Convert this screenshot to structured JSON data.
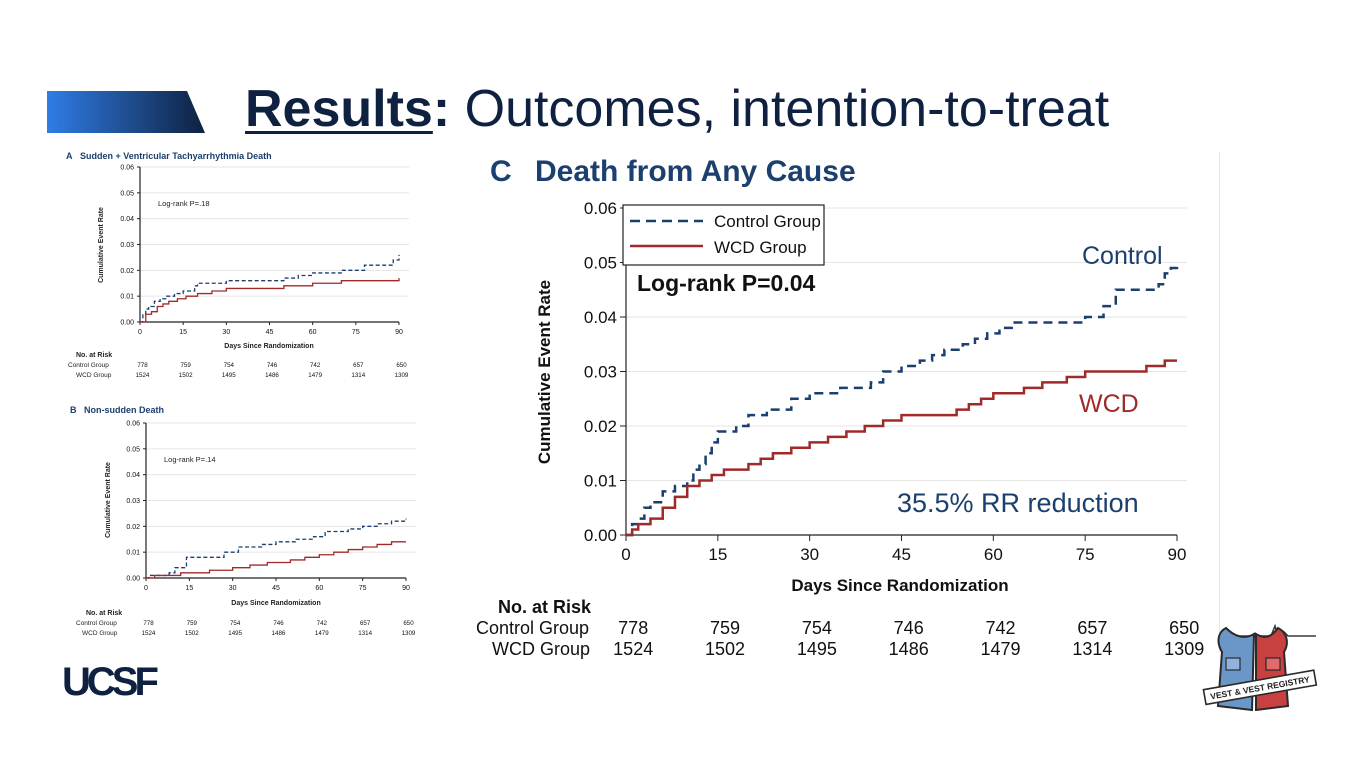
{
  "slide": {
    "title_bold": "Results",
    "title_colon": ":",
    "title_rest": " Outcomes, intention-to-treat"
  },
  "colors": {
    "navy": "#0f2140",
    "control": "#1b3f6e",
    "wcd": "#a02a2a",
    "banner_light": "#2f7de6",
    "banner_dark": "#0f2140"
  },
  "chart_data": [
    {
      "id": "A",
      "type": "line",
      "panel_label": "A",
      "title": "Sudden + Ventricular Tachyarrhythmia Death",
      "xlabel": "Days Since Randomization",
      "ylabel": "Cumulative Event Rate",
      "xlim": [
        0,
        90
      ],
      "ylim": [
        0,
        0.06
      ],
      "xticks": [
        "0",
        "15",
        "30",
        "45",
        "60",
        "75",
        "90"
      ],
      "yticks": [
        "0.00",
        "0.01",
        "0.02",
        "0.03",
        "0.04",
        "0.05",
        "0.06"
      ],
      "annotation": "Log-rank P=.18",
      "grid": true,
      "series": [
        {
          "name": "Control Group",
          "style": "dashed",
          "color": "#1b3f6e",
          "x": [
            0,
            1,
            2,
            3,
            5,
            7,
            9,
            12,
            15,
            19,
            20,
            25,
            30,
            40,
            50,
            55,
            60,
            70,
            78,
            88,
            90
          ],
          "y": [
            0,
            0.003,
            0.005,
            0.006,
            0.008,
            0.009,
            0.01,
            0.011,
            0.012,
            0.014,
            0.015,
            0.015,
            0.016,
            0.016,
            0.017,
            0.018,
            0.019,
            0.02,
            0.022,
            0.024,
            0.026
          ]
        },
        {
          "name": "WCD Group",
          "style": "solid",
          "color": "#a02a2a",
          "x": [
            0,
            2,
            4,
            6,
            8,
            10,
            13,
            16,
            20,
            25,
            30,
            40,
            50,
            60,
            70,
            80,
            90
          ],
          "y": [
            0,
            0.003,
            0.004,
            0.006,
            0.007,
            0.008,
            0.009,
            0.01,
            0.011,
            0.012,
            0.013,
            0.013,
            0.014,
            0.015,
            0.016,
            0.016,
            0.017
          ]
        }
      ],
      "risk_table": {
        "header": "No. at Risk",
        "rows": [
          {
            "label": "Control Group",
            "values": [
              "778",
              "759",
              "754",
              "746",
              "742",
              "657",
              "650"
            ]
          },
          {
            "label": "WCD Group",
            "values": [
              "1524",
              "1502",
              "1495",
              "1486",
              "1479",
              "1314",
              "1309"
            ]
          }
        ]
      }
    },
    {
      "id": "B",
      "type": "line",
      "panel_label": "B",
      "title": "Non-sudden Death",
      "xlabel": "Days Since Randomization",
      "ylabel": "Cumulative Event Rate",
      "xlim": [
        0,
        90
      ],
      "ylim": [
        0,
        0.06
      ],
      "xticks": [
        "0",
        "15",
        "30",
        "45",
        "60",
        "75",
        "90"
      ],
      "yticks": [
        "0.00",
        "0.01",
        "0.02",
        "0.03",
        "0.04",
        "0.05",
        "0.06"
      ],
      "annotation": "Log-rank P=.14",
      "grid": true,
      "series": [
        {
          "name": "Control Group",
          "style": "dashed",
          "color": "#1b3f6e",
          "x": [
            0,
            1,
            8,
            10,
            14,
            27,
            32,
            40,
            45,
            52,
            58,
            62,
            70,
            75,
            80,
            85,
            90
          ],
          "y": [
            0,
            0.001,
            0.002,
            0.004,
            0.008,
            0.01,
            0.012,
            0.013,
            0.014,
            0.015,
            0.016,
            0.018,
            0.019,
            0.02,
            0.021,
            0.022,
            0.023
          ]
        },
        {
          "name": "WCD Group",
          "style": "solid",
          "color": "#a02a2a",
          "x": [
            0,
            3,
            12,
            22,
            30,
            36,
            42,
            50,
            55,
            60,
            65,
            70,
            75,
            80,
            85,
            90
          ],
          "y": [
            0,
            0.001,
            0.002,
            0.003,
            0.004,
            0.005,
            0.006,
            0.007,
            0.008,
            0.009,
            0.01,
            0.011,
            0.012,
            0.013,
            0.014,
            0.014
          ]
        }
      ],
      "risk_table": {
        "header": "No. at Risk",
        "rows": [
          {
            "label": "Control Group",
            "values": [
              "778",
              "759",
              "754",
              "746",
              "742",
              "657",
              "650"
            ]
          },
          {
            "label": "WCD Group",
            "values": [
              "1524",
              "1502",
              "1495",
              "1486",
              "1479",
              "1314",
              "1309"
            ]
          }
        ]
      }
    },
    {
      "id": "C",
      "type": "line",
      "panel_label": "C",
      "title": "Death from Any Cause",
      "xlabel": "Days Since Randomization",
      "ylabel": "Cumulative Event Rate",
      "xlim": [
        0,
        90
      ],
      "ylim": [
        0,
        0.06
      ],
      "xticks": [
        "0",
        "15",
        "30",
        "45",
        "60",
        "75",
        "90"
      ],
      "yticks": [
        "0.00",
        "0.01",
        "0.02",
        "0.03",
        "0.04",
        "0.05",
        "0.06"
      ],
      "annotation": "Log-rank P=0.04",
      "legend_position": "top-left",
      "grid": true,
      "series": [
        {
          "name": "Control Group",
          "label": "Control",
          "style": "dashed",
          "color": "#1b3f6e",
          "x": [
            0,
            1,
            2,
            3,
            4,
            6,
            8,
            10,
            11,
            12,
            13,
            14,
            15,
            18,
            20,
            23,
            27,
            30,
            33,
            35,
            40,
            42,
            45,
            48,
            50,
            52,
            55,
            57,
            59,
            61,
            63,
            65,
            70,
            75,
            78,
            80,
            85,
            87,
            88,
            89,
            90
          ],
          "y": [
            0,
            0.002,
            0.003,
            0.005,
            0.006,
            0.008,
            0.009,
            0.01,
            0.012,
            0.013,
            0.015,
            0.017,
            0.019,
            0.02,
            0.022,
            0.023,
            0.025,
            0.026,
            0.026,
            0.027,
            0.028,
            0.03,
            0.031,
            0.032,
            0.033,
            0.034,
            0.035,
            0.036,
            0.037,
            0.038,
            0.039,
            0.039,
            0.039,
            0.04,
            0.042,
            0.045,
            0.045,
            0.046,
            0.048,
            0.049,
            0.05
          ]
        },
        {
          "name": "WCD Group",
          "label": "WCD",
          "style": "solid",
          "color": "#a02a2a",
          "x": [
            0,
            1,
            2,
            4,
            6,
            8,
            10,
            12,
            14,
            16,
            18,
            20,
            22,
            24,
            27,
            30,
            33,
            36,
            39,
            42,
            45,
            48,
            52,
            54,
            56,
            58,
            60,
            63,
            65,
            68,
            72,
            75,
            80,
            85,
            88,
            90
          ],
          "y": [
            0,
            0.001,
            0.002,
            0.003,
            0.005,
            0.007,
            0.009,
            0.01,
            0.011,
            0.012,
            0.012,
            0.013,
            0.014,
            0.015,
            0.016,
            0.017,
            0.018,
            0.019,
            0.02,
            0.021,
            0.022,
            0.022,
            0.022,
            0.023,
            0.024,
            0.025,
            0.026,
            0.026,
            0.027,
            0.028,
            0.029,
            0.03,
            0.03,
            0.031,
            0.032,
            0.032
          ]
        }
      ],
      "callout": "35.5% RR reduction",
      "risk_table": {
        "header": "No. at Risk",
        "rows": [
          {
            "label": "Control Group",
            "values": [
              "778",
              "759",
              "754",
              "746",
              "742",
              "657",
              "650"
            ]
          },
          {
            "label": "WCD Group",
            "values": [
              "1524",
              "1502",
              "1495",
              "1486",
              "1479",
              "1314",
              "1309"
            ]
          }
        ]
      }
    }
  ],
  "logos": {
    "ucsf": "UCSF",
    "registry": "VEST & VEST REGISTRY"
  }
}
